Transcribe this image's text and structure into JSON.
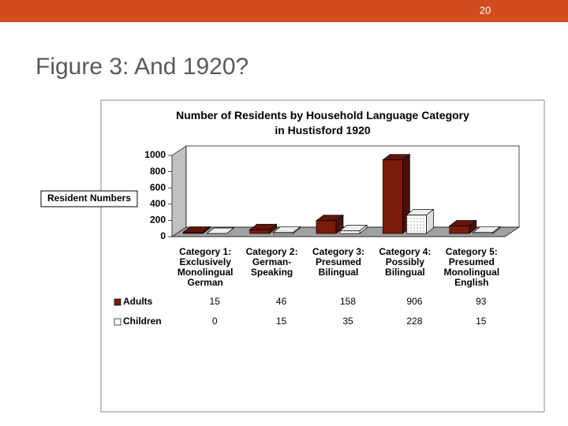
{
  "slide_number": "20",
  "heading": "Figure 3: And 1920?",
  "chart_data": {
    "type": "bar3d",
    "title": "Number of Residents by Household Language Category in Hustisford 1920",
    "y_label": "Resident Numbers",
    "categories": [
      "Category 1: Exclusively Monolingual German",
      "Category 2: German-Speaking",
      "Category 3: Presumed Bilingual",
      "Category 4: Possibly Bilingual",
      "Category 5: Presumed Monolingual English"
    ],
    "series": [
      {
        "name": "Adults",
        "color": "#7a1c0c",
        "values": [
          15,
          46,
          158,
          906,
          93
        ]
      },
      {
        "name": "Children",
        "color": "#ffffff",
        "values": [
          0,
          15,
          35,
          228,
          15
        ]
      }
    ],
    "ylim": [
      0,
      1000
    ],
    "yticks": [
      0,
      200,
      400,
      600,
      800,
      1000
    ],
    "grid": false
  }
}
